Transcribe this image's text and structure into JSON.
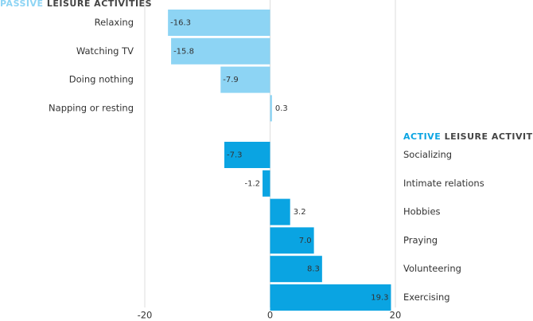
{
  "chart_data": {
    "type": "bar",
    "groups": [
      {
        "title_highlight": "PASSIVE",
        "title_rest": "LEISURE ACTIVITIES",
        "color": "#8dd4f4",
        "categories": [
          "Relaxing",
          "Watching TV",
          "Doing nothing",
          "Napping or resting"
        ],
        "values": [
          -16.3,
          -15.8,
          -7.9,
          0.3
        ],
        "value_labels": [
          "-16.3",
          "-15.8",
          "-7.9",
          "0.3"
        ]
      },
      {
        "title_highlight": "ACTIVE",
        "title_rest": "LEISURE ACTIVITIES",
        "color": "#0aa4e2",
        "categories": [
          "Socializing",
          "Intimate relations",
          "Hobbies",
          "Praying",
          "Volunteering",
          "Exercising"
        ],
        "values": [
          -7.3,
          -1.2,
          3.2,
          7.0,
          8.3,
          19.3
        ],
        "value_labels": [
          "-7.3",
          "-1.2",
          "3.2",
          "7.0",
          "8.3",
          "19.3"
        ]
      }
    ],
    "xlim": [
      -20,
      20
    ],
    "xticks": [
      -20,
      0,
      20
    ],
    "grid": true
  }
}
